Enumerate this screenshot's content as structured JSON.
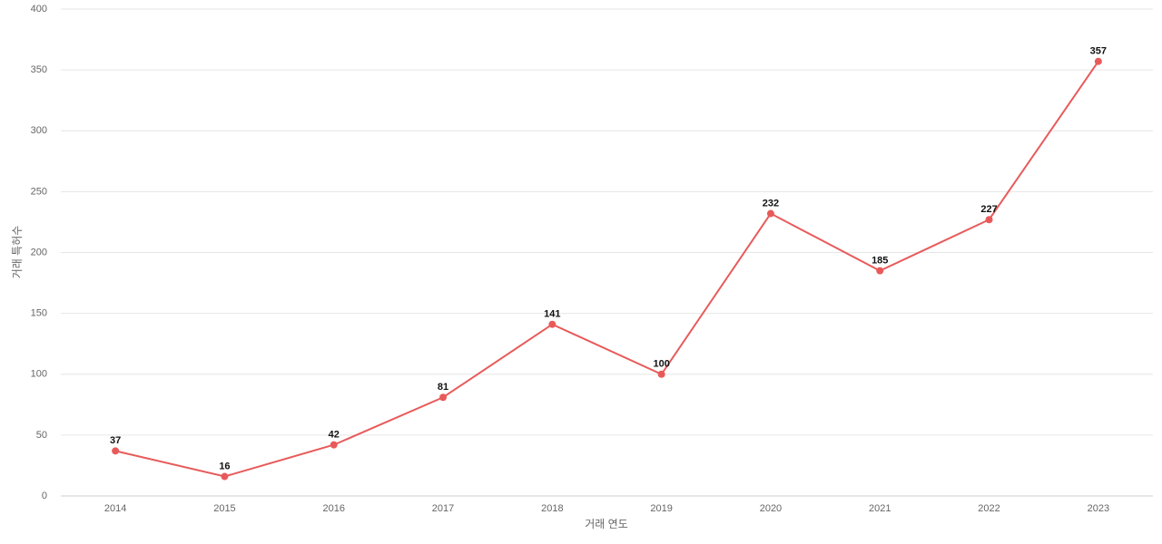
{
  "chart_data": {
    "type": "line",
    "x_label": "거래 연도",
    "y_label": "거래 특허수",
    "categories": [
      "2014",
      "2015",
      "2016",
      "2017",
      "2018",
      "2019",
      "2020",
      "2021",
      "2022",
      "2023"
    ],
    "series": [
      {
        "name": "거래 특허수",
        "color": "#e85a5a",
        "values": [
          37,
          16,
          42,
          81,
          141,
          100,
          232,
          185,
          227,
          357
        ]
      }
    ],
    "ylim": [
      0,
      400
    ],
    "yticks": [
      0,
      50,
      100,
      150,
      200,
      250,
      300,
      350,
      400
    ],
    "grid": true
  }
}
